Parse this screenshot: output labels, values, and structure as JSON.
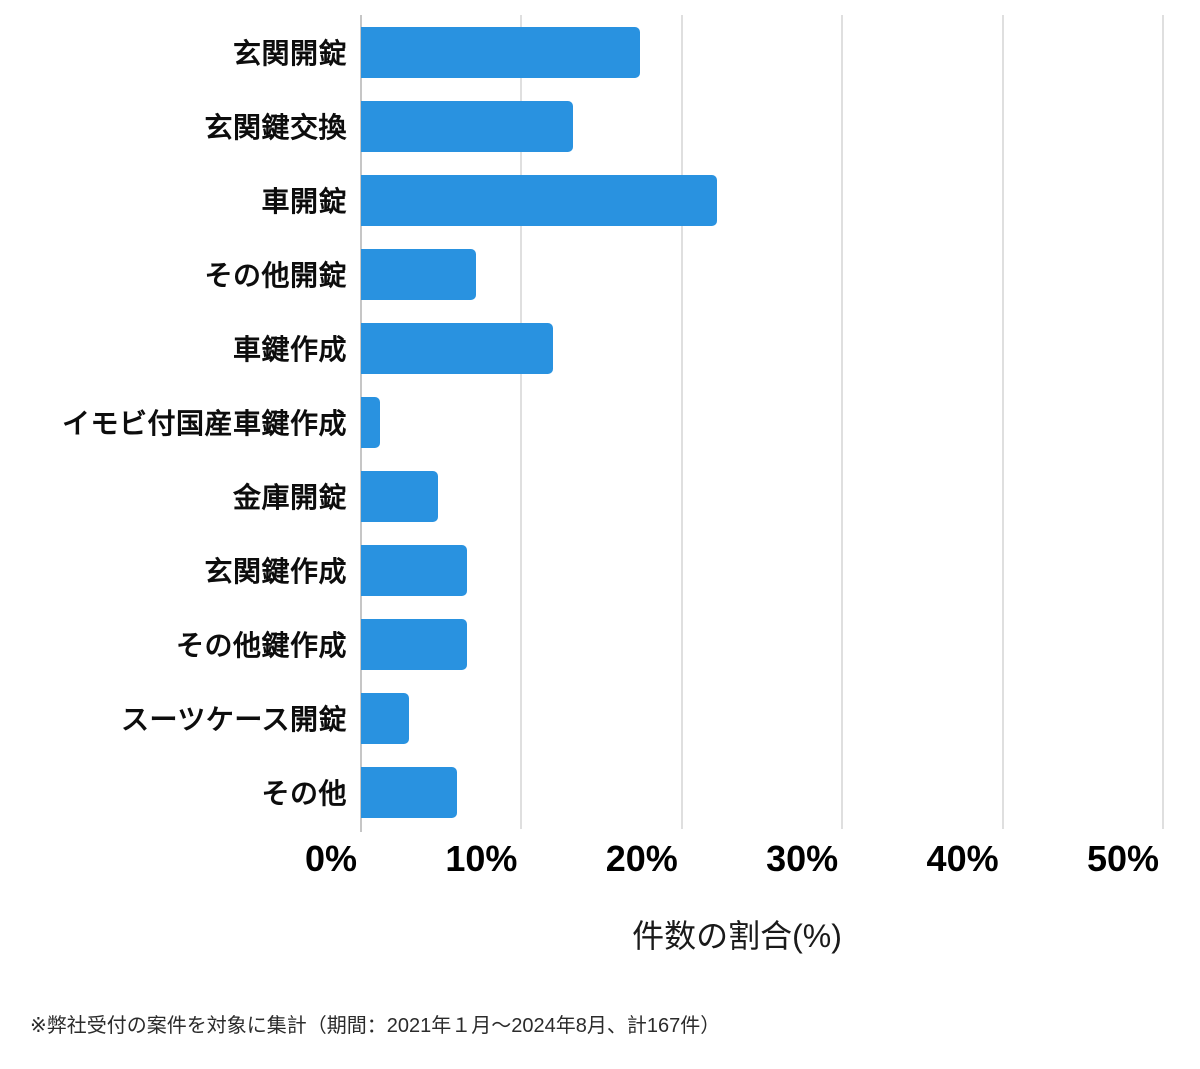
{
  "chart_data": {
    "type": "bar",
    "orientation": "horizontal",
    "title": "",
    "categories": [
      "玄関開錠",
      "玄関鍵交換",
      "車開錠",
      "その他開錠",
      "車鍵作成",
      "イモビ付国産車鍵作成",
      "金庫開錠",
      "玄関鍵作成",
      "その他鍵作成",
      "スーツケース開錠",
      "その他"
    ],
    "values": [
      17.4,
      13.2,
      22.2,
      7.2,
      12.0,
      1.2,
      4.8,
      6.6,
      6.6,
      3.0,
      6.0
    ],
    "unit": "percent",
    "xlabel": "件数の割合(%)",
    "ylabel": "",
    "xlim": [
      0,
      50
    ],
    "x_ticks": [
      0,
      10,
      20,
      30,
      40,
      50
    ],
    "x_tick_labels": [
      "0%",
      "10%",
      "20%",
      "30%",
      "40%",
      "50%"
    ],
    "grid": true,
    "legend": "none",
    "bar_color": "#2992e0"
  },
  "footnote": "※弊社受付の案件を対象に集計（期間：2021年１月～2024年8月、計167件）",
  "colors": {
    "bar": "#2992e0",
    "gridline": "#dfdfdf",
    "axis_line": "#c6c6c6",
    "label_text": "#0d0d0d",
    "tick_text": "#000000",
    "footnote_text": "#2b2b2b",
    "background": "#ffffff"
  }
}
